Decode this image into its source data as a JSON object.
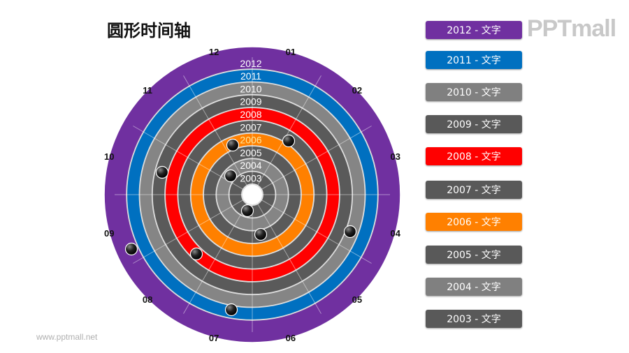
{
  "title": "圆形时间轴",
  "logo": "PPTmall",
  "site": "www.pptmall.net",
  "rings": [
    {
      "year": "2003",
      "color": "#5a5a5a"
    },
    {
      "year": "2004",
      "color": "#858585"
    },
    {
      "year": "2005",
      "color": "#5a5a5a"
    },
    {
      "year": "2006",
      "color": "#ff8000"
    },
    {
      "year": "2007",
      "color": "#5a5a5a"
    },
    {
      "year": "2008",
      "color": "#ff0000"
    },
    {
      "year": "2009",
      "color": "#5a5a5a"
    },
    {
      "year": "2010",
      "color": "#858585"
    },
    {
      "year": "2011",
      "color": "#0070c0"
    },
    {
      "year": "2012",
      "color": "#7030a0"
    }
  ],
  "months": [
    "01",
    "02",
    "03",
    "04",
    "05",
    "06",
    "07",
    "08",
    "09",
    "10",
    "11",
    "12"
  ],
  "legend": [
    {
      "label": "2012 - 文字",
      "color": "#7030a0"
    },
    {
      "label": "2011 - 文字",
      "color": "#0070c0"
    },
    {
      "label": "2010 - 文字",
      "color": "#808080"
    },
    {
      "label": "2009 - 文字",
      "color": "#595959"
    },
    {
      "label": "2008 - 文字",
      "color": "#ff0000"
    },
    {
      "label": "2007 - 文字",
      "color": "#595959"
    },
    {
      "label": "2006 - 文字",
      "color": "#ff8000"
    },
    {
      "label": "2005 - 文字",
      "color": "#595959"
    },
    {
      "label": "2004 - 文字",
      "color": "#808080"
    },
    {
      "label": "2003 - 文字",
      "color": "#595959"
    }
  ]
}
